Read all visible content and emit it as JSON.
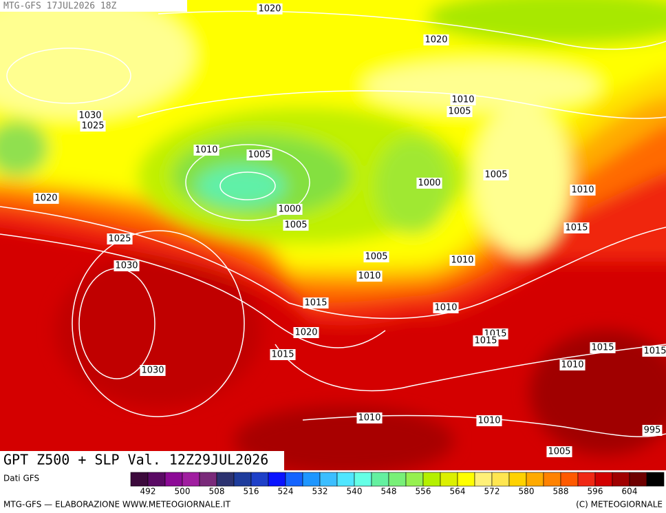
{
  "header": {
    "title": "MTG-GFS 17JUL2026 18Z"
  },
  "map": {
    "isobar_labels": [
      1020,
      1020,
      1010,
      1005,
      1030,
      1025,
      1010,
      1005,
      1020,
      1005,
      1000,
      1010,
      1000,
      1005,
      1015,
      1025,
      1005,
      1010,
      1030,
      1010,
      1015,
      1010,
      1020,
      1015,
      1015,
      1015,
      1015,
      1015,
      1010,
      1030,
      1010,
      1010,
      995,
      1005
    ]
  },
  "caption": {
    "title": "GPT Z500 + SLP Val. 12Z29JUL2026",
    "source": "Dati GFS"
  },
  "legend": {
    "labels": [
      492,
      500,
      508,
      516,
      524,
      532,
      540,
      548,
      556,
      564,
      572,
      580,
      588,
      596,
      604
    ],
    "colors": [
      "#3c0a3c",
      "#5a0a64",
      "#8c0a96",
      "#a01ea0",
      "#7a2a7a",
      "#2c3270",
      "#1e3c9c",
      "#1e40c8",
      "#0a14ff",
      "#1464ff",
      "#1e96ff",
      "#3cbeff",
      "#50e6ff",
      "#64ffe6",
      "#64f0a0",
      "#78f078",
      "#96f050",
      "#b4f000",
      "#dcf000",
      "#ffff00",
      "#fff078",
      "#ffe650",
      "#ffd200",
      "#ffaa00",
      "#ff8200",
      "#ff5a00",
      "#f02814",
      "#d20000",
      "#a00000",
      "#6e0000",
      "#000000"
    ]
  },
  "footer": {
    "left": "MTG-GFS — ELABORAZIONE WWW.METEOGIORNALE.IT",
    "right": "(C) METEOGIORNALE"
  }
}
